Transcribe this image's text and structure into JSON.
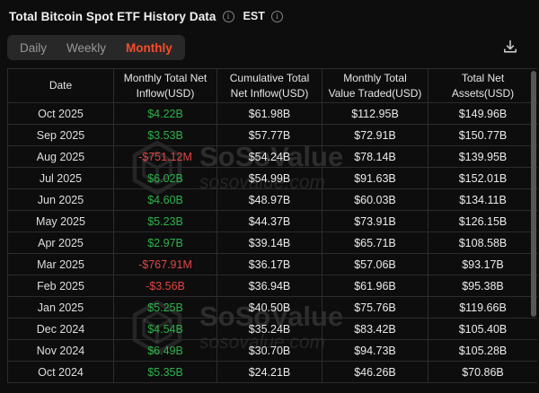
{
  "header": {
    "title": "Total Bitcoin Spot ETF History Data",
    "timezone": "EST"
  },
  "icons": {
    "info_glyph": "i"
  },
  "tabs": {
    "items": [
      {
        "label": "Daily",
        "active": false
      },
      {
        "label": "Weekly",
        "active": false
      },
      {
        "label": "Monthly",
        "active": true
      }
    ]
  },
  "watermark": {
    "brand": "SoSoValue",
    "domain": "sosovalue.com"
  },
  "colors": {
    "background": "#0d0d0d",
    "active_tab": "#f94b2b",
    "positive": "#2db14b",
    "negative": "#e14545",
    "border": "#2c2c2c"
  },
  "table": {
    "columns": [
      "Date",
      "Monthly Total Net\nInflow(USD)",
      "Cumulative Total\nNet Inflow(USD)",
      "Monthly Total\nValue Traded(USD)",
      "Total Net\nAssets(USD)"
    ],
    "rows": [
      {
        "date": "Oct 2025",
        "inflow": "$4.22B",
        "trend": "positive",
        "cumulative": "$61.98B",
        "traded": "$112.95B",
        "assets": "$149.96B"
      },
      {
        "date": "Sep 2025",
        "inflow": "$3.53B",
        "trend": "positive",
        "cumulative": "$57.77B",
        "traded": "$72.91B",
        "assets": "$150.77B"
      },
      {
        "date": "Aug 2025",
        "inflow": "-$751.12M",
        "trend": "negative",
        "cumulative": "$54.24B",
        "traded": "$78.14B",
        "assets": "$139.95B"
      },
      {
        "date": "Jul 2025",
        "inflow": "$6.02B",
        "trend": "positive",
        "cumulative": "$54.99B",
        "traded": "$91.63B",
        "assets": "$152.01B"
      },
      {
        "date": "Jun 2025",
        "inflow": "$4.60B",
        "trend": "positive",
        "cumulative": "$48.97B",
        "traded": "$60.03B",
        "assets": "$134.11B"
      },
      {
        "date": "May 2025",
        "inflow": "$5.23B",
        "trend": "positive",
        "cumulative": "$44.37B",
        "traded": "$73.91B",
        "assets": "$126.15B"
      },
      {
        "date": "Apr 2025",
        "inflow": "$2.97B",
        "trend": "positive",
        "cumulative": "$39.14B",
        "traded": "$65.71B",
        "assets": "$108.58B"
      },
      {
        "date": "Mar 2025",
        "inflow": "-$767.91M",
        "trend": "negative",
        "cumulative": "$36.17B",
        "traded": "$57.06B",
        "assets": "$93.17B"
      },
      {
        "date": "Feb 2025",
        "inflow": "-$3.56B",
        "trend": "negative",
        "cumulative": "$36.94B",
        "traded": "$61.96B",
        "assets": "$95.38B"
      },
      {
        "date": "Jan 2025",
        "inflow": "$5.25B",
        "trend": "positive",
        "cumulative": "$40.50B",
        "traded": "$75.76B",
        "assets": "$119.66B"
      },
      {
        "date": "Dec 2024",
        "inflow": "$4.54B",
        "trend": "positive",
        "cumulative": "$35.24B",
        "traded": "$83.42B",
        "assets": "$105.40B"
      },
      {
        "date": "Nov 2024",
        "inflow": "$6.49B",
        "trend": "positive",
        "cumulative": "$30.70B",
        "traded": "$94.73B",
        "assets": "$105.28B"
      },
      {
        "date": "Oct 2024",
        "inflow": "$5.35B",
        "trend": "positive",
        "cumulative": "$24.21B",
        "traded": "$46.26B",
        "assets": "$70.86B"
      }
    ]
  }
}
